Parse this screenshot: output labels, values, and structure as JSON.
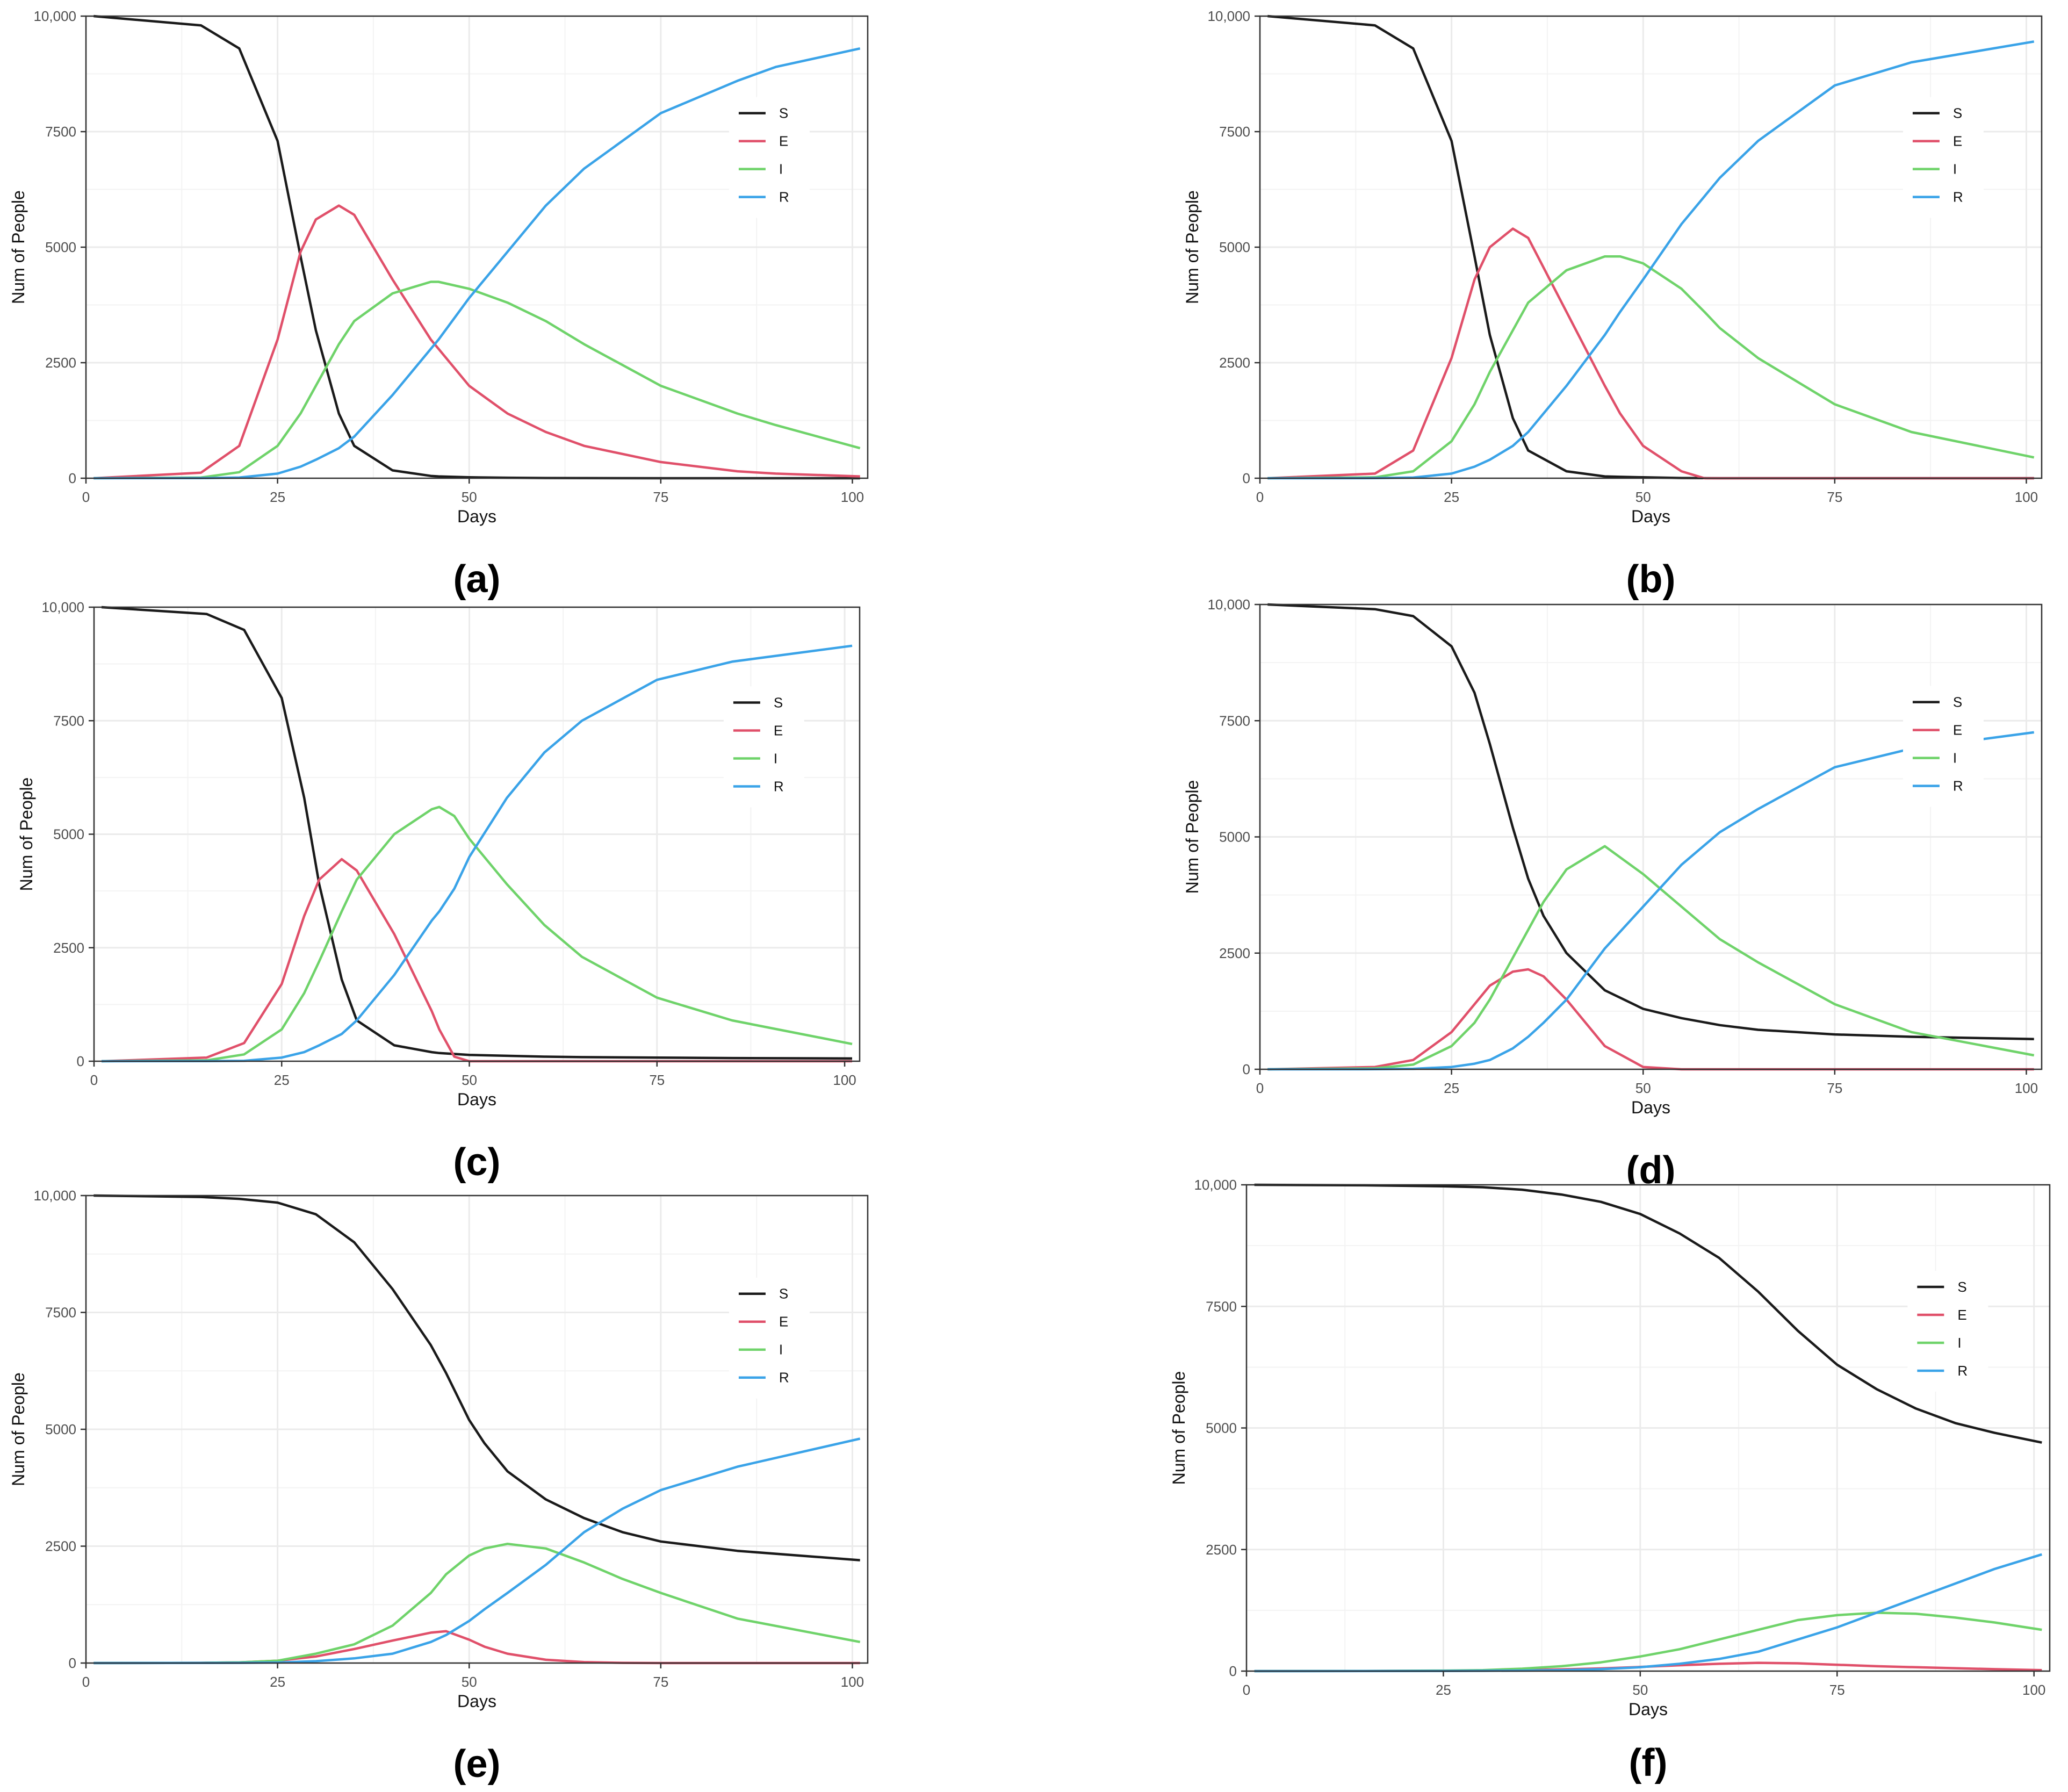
{
  "colors": {
    "S": "#1a1a1a",
    "E": "#e0506a",
    "I": "#6fd36a",
    "R": "#3aa3e8",
    "grid": "#ebebeb",
    "frame": "#333333",
    "tick_text": "#4d4d4d"
  },
  "shared": {
    "xlabel": "Days",
    "ylabel": "Num of People",
    "x_ticks": [
      "0",
      "25",
      "50",
      "75",
      "100"
    ],
    "y_ticks": [
      "0",
      "2500",
      "5000",
      "7500",
      "10,000"
    ],
    "legend_entries": [
      "S",
      "E",
      "I",
      "R"
    ]
  },
  "chart_data": [
    {
      "type": "line",
      "caption": "(a)",
      "xlim": [
        0,
        102
      ],
      "ylim": [
        0,
        10000
      ],
      "grid": true,
      "legend": "right",
      "x": [
        1,
        15,
        20,
        25,
        28,
        30,
        33,
        35,
        40,
        45,
        46,
        50,
        55,
        60,
        65,
        75,
        85,
        90,
        101
      ],
      "series": [
        {
          "name": "S",
          "values": [
            10000,
            9800,
            9300,
            7300,
            4800,
            3200,
            1400,
            700,
            170,
            50,
            40,
            20,
            10,
            5,
            2,
            0,
            0,
            0,
            0
          ]
        },
        {
          "name": "E",
          "values": [
            0,
            120,
            700,
            3000,
            4900,
            5600,
            5900,
            5700,
            4300,
            3000,
            2800,
            2000,
            1400,
            1000,
            700,
            350,
            150,
            100,
            40
          ]
        },
        {
          "name": "I",
          "values": [
            0,
            15,
            130,
            700,
            1400,
            2000,
            2900,
            3400,
            4000,
            4250,
            4250,
            4100,
            3800,
            3400,
            2900,
            2000,
            1400,
            1150,
            650
          ]
        },
        {
          "name": "R",
          "values": [
            0,
            2,
            15,
            100,
            250,
            400,
            650,
            900,
            1800,
            2800,
            3000,
            3900,
            4900,
            5900,
            6700,
            7900,
            8600,
            8900,
            9300
          ]
        }
      ]
    },
    {
      "type": "line",
      "caption": "(b)",
      "xlim": [
        0,
        102
      ],
      "ylim": [
        0,
        10000
      ],
      "grid": true,
      "legend": "right",
      "x": [
        1,
        15,
        20,
        25,
        28,
        30,
        33,
        35,
        40,
        45,
        47,
        50,
        55,
        58,
        60,
        65,
        75,
        85,
        101
      ],
      "series": [
        {
          "name": "S",
          "values": [
            10000,
            9800,
            9300,
            7300,
            4800,
            3100,
            1300,
            600,
            150,
            40,
            30,
            20,
            5,
            2,
            0,
            0,
            0,
            0,
            0
          ]
        },
        {
          "name": "E",
          "values": [
            0,
            100,
            600,
            2600,
            4300,
            5000,
            5400,
            5200,
            3600,
            2000,
            1400,
            700,
            150,
            0,
            0,
            0,
            0,
            0,
            0
          ]
        },
        {
          "name": "I",
          "values": [
            0,
            20,
            150,
            800,
            1600,
            2300,
            3200,
            3800,
            4500,
            4800,
            4800,
            4650,
            4100,
            3600,
            3250,
            2600,
            1600,
            1000,
            450
          ]
        },
        {
          "name": "R",
          "values": [
            0,
            2,
            15,
            100,
            250,
            400,
            700,
            1000,
            2000,
            3100,
            3600,
            4300,
            5500,
            6100,
            6500,
            7300,
            8500,
            9000,
            9450
          ]
        }
      ]
    },
    {
      "type": "line",
      "caption": "(c)",
      "xlim": [
        0,
        102
      ],
      "ylim": [
        0,
        10000
      ],
      "grid": true,
      "legend": "right",
      "x": [
        1,
        15,
        20,
        25,
        28,
        30,
        33,
        35,
        40,
        45,
        46,
        48,
        50,
        55,
        60,
        65,
        75,
        85,
        101
      ],
      "series": [
        {
          "name": "S",
          "values": [
            10000,
            9850,
            9500,
            8000,
            5800,
            3900,
            1800,
            900,
            350,
            200,
            180,
            160,
            140,
            120,
            100,
            90,
            80,
            70,
            60
          ]
        },
        {
          "name": "E",
          "values": [
            0,
            80,
            400,
            1700,
            3200,
            4000,
            4450,
            4200,
            2800,
            1100,
            700,
            100,
            0,
            0,
            0,
            0,
            0,
            0,
            0
          ]
        },
        {
          "name": "I",
          "values": [
            0,
            20,
            150,
            700,
            1500,
            2200,
            3300,
            4000,
            5000,
            5550,
            5600,
            5400,
            4900,
            3900,
            3000,
            2300,
            1400,
            900,
            380
          ]
        },
        {
          "name": "R",
          "values": [
            0,
            2,
            10,
            80,
            200,
            350,
            600,
            900,
            1900,
            3100,
            3300,
            3800,
            4500,
            5800,
            6800,
            7500,
            8400,
            8800,
            9150
          ]
        }
      ]
    },
    {
      "type": "line",
      "caption": "(d)",
      "xlim": [
        0,
        102
      ],
      "ylim": [
        0,
        10000
      ],
      "grid": true,
      "legend": "right",
      "x": [
        1,
        15,
        20,
        25,
        28,
        30,
        33,
        35,
        37,
        40,
        45,
        50,
        55,
        60,
        65,
        75,
        85,
        101
      ],
      "series": [
        {
          "name": "S",
          "values": [
            10000,
            9900,
            9750,
            9100,
            8100,
            7000,
            5200,
            4100,
            3300,
            2500,
            1700,
            1300,
            1100,
            950,
            850,
            750,
            700,
            650
          ]
        },
        {
          "name": "E",
          "values": [
            0,
            50,
            200,
            800,
            1400,
            1800,
            2100,
            2150,
            2000,
            1500,
            500,
            50,
            0,
            0,
            0,
            0,
            0,
            0
          ]
        },
        {
          "name": "I",
          "values": [
            0,
            20,
            100,
            500,
            1000,
            1500,
            2400,
            3000,
            3600,
            4300,
            4800,
            4200,
            3500,
            2800,
            2300,
            1400,
            800,
            300
          ]
        },
        {
          "name": "R",
          "values": [
            0,
            2,
            10,
            50,
            120,
            200,
            450,
            700,
            1000,
            1500,
            2600,
            3500,
            4400,
            5100,
            5600,
            6500,
            6900,
            7250
          ]
        }
      ]
    },
    {
      "type": "line",
      "caption": "(e)",
      "xlim": [
        0,
        102
      ],
      "ylim": [
        0,
        10000
      ],
      "grid": true,
      "legend": "right",
      "x": [
        1,
        15,
        20,
        25,
        30,
        35,
        40,
        45,
        47,
        50,
        52,
        55,
        60,
        65,
        70,
        75,
        85,
        101
      ],
      "series": [
        {
          "name": "S",
          "values": [
            10000,
            9970,
            9930,
            9850,
            9600,
            9000,
            8000,
            6800,
            6200,
            5200,
            4700,
            4100,
            3500,
            3100,
            2800,
            2600,
            2400,
            2200
          ]
        },
        {
          "name": "E",
          "values": [
            0,
            5,
            15,
            50,
            140,
            300,
            480,
            650,
            680,
            500,
            350,
            200,
            70,
            20,
            5,
            0,
            0,
            0
          ]
        },
        {
          "name": "I",
          "values": [
            0,
            5,
            15,
            50,
            200,
            400,
            800,
            1500,
            1900,
            2300,
            2450,
            2550,
            2450,
            2150,
            1800,
            1500,
            950,
            450
          ]
        },
        {
          "name": "R",
          "values": [
            0,
            2,
            5,
            10,
            40,
            100,
            200,
            450,
            600,
            900,
            1150,
            1500,
            2100,
            2800,
            3300,
            3700,
            4200,
            4800
          ]
        }
      ]
    },
    {
      "type": "line",
      "caption": "(f)",
      "xlim": [
        0,
        102
      ],
      "ylim": [
        0,
        10000
      ],
      "grid": true,
      "legend": "right",
      "x": [
        1,
        15,
        25,
        30,
        35,
        40,
        45,
        50,
        55,
        60,
        65,
        70,
        75,
        80,
        85,
        90,
        95,
        101
      ],
      "series": [
        {
          "name": "S",
          "values": [
            10000,
            9990,
            9970,
            9950,
            9900,
            9800,
            9650,
            9400,
            9000,
            8500,
            7800,
            7000,
            6300,
            5800,
            5400,
            5100,
            4900,
            4700
          ]
        },
        {
          "name": "E",
          "values": [
            0,
            2,
            5,
            10,
            20,
            35,
            55,
            85,
            120,
            150,
            170,
            160,
            130,
            100,
            80,
            60,
            40,
            20
          ]
        },
        {
          "name": "I",
          "values": [
            0,
            3,
            10,
            20,
            50,
            100,
            180,
            300,
            450,
            650,
            850,
            1050,
            1150,
            1200,
            1180,
            1100,
            1000,
            850
          ]
        },
        {
          "name": "R",
          "values": [
            0,
            1,
            3,
            5,
            10,
            20,
            40,
            80,
            150,
            250,
            400,
            650,
            900,
            1200,
            1500,
            1800,
            2100,
            2400
          ]
        }
      ]
    }
  ]
}
